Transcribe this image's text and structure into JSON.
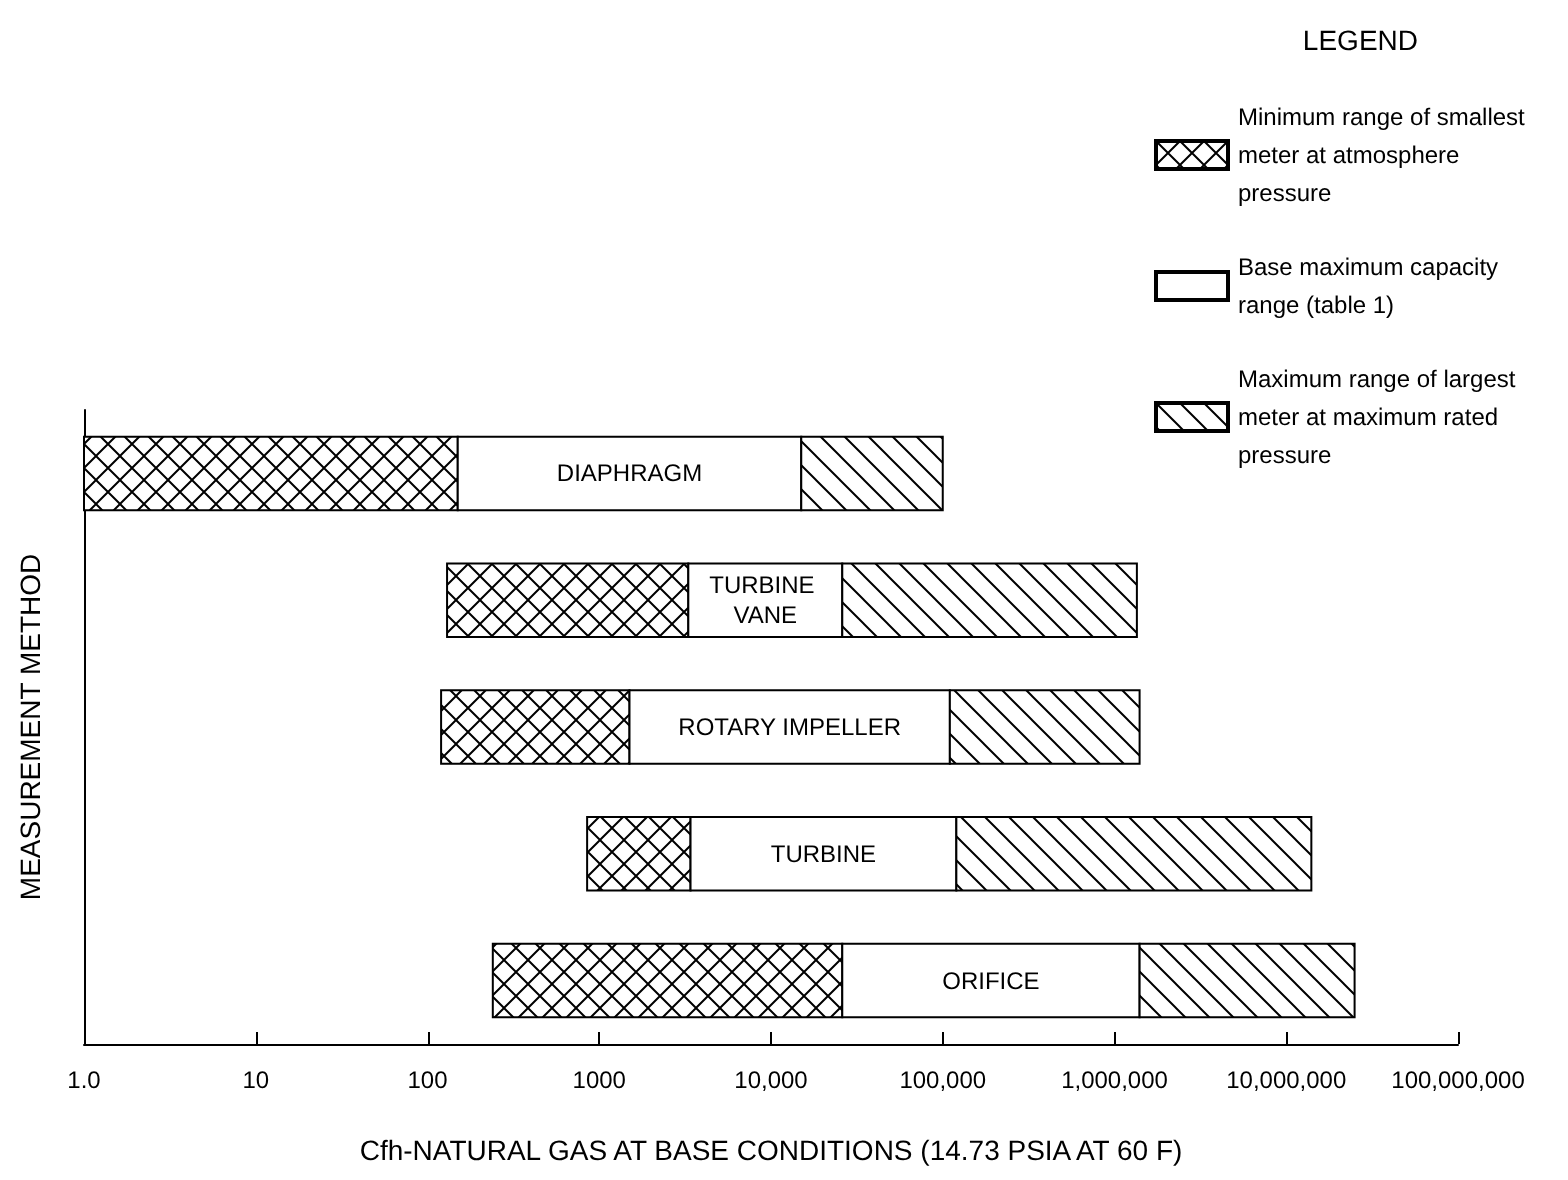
{
  "chart_data": {
    "type": "bar",
    "orientation": "horizontal",
    "log": "x",
    "xlabel": "Cfh-NATURAL GAS AT BASE CONDITIONS (14.73 PSIA AT 60 F)",
    "ylabel": "MEASUREMENT METHOD",
    "legend_title": "LEGEND",
    "categories": [
      "DIAPHRAGM",
      "TURBINE VANE",
      "ROTARY IMPELLER",
      "TURBINE",
      "ORIFICE"
    ],
    "series": [
      {
        "name": "Minimum range of smallest meter at atmosphere pressure",
        "color": "#000000",
        "base": [
          1,
          130,
          120,
          850,
          240
        ],
        "values": [
          149,
          3170,
          1380,
          2550,
          25760
        ]
      },
      {
        "name": "Base maximum capacity range (table 1)",
        "color": "#ffffff",
        "base": [
          150,
          3300,
          1500,
          3400,
          26000
        ],
        "values": [
          14850,
          22700,
          108500,
          116600,
          1374000
        ]
      },
      {
        "name": "Maximum range of largest meter at maximum rated pressure",
        "color": "#000000",
        "base": [
          15000,
          26000,
          110000,
          120000,
          1400000
        ],
        "values": [
          85000,
          1324000,
          1290000,
          13880000,
          23600000
        ]
      }
    ],
    "xlim": [
      1,
      100000000
    ],
    "xticks": [
      {
        "value": 1,
        "label": "1.0"
      },
      10,
      100,
      1000,
      {
        "value": 10000,
        "label": "10,000"
      },
      {
        "value": 100000,
        "label": "100,000"
      },
      {
        "value": 1000000,
        "label": "1,000,000"
      },
      {
        "value": 10000000,
        "label": "10,000,000"
      },
      {
        "value": 100000000,
        "label": "100,000,000"
      }
    ],
    "tick_labels": "x",
    "legend": "top right",
    "grid": false
  }
}
